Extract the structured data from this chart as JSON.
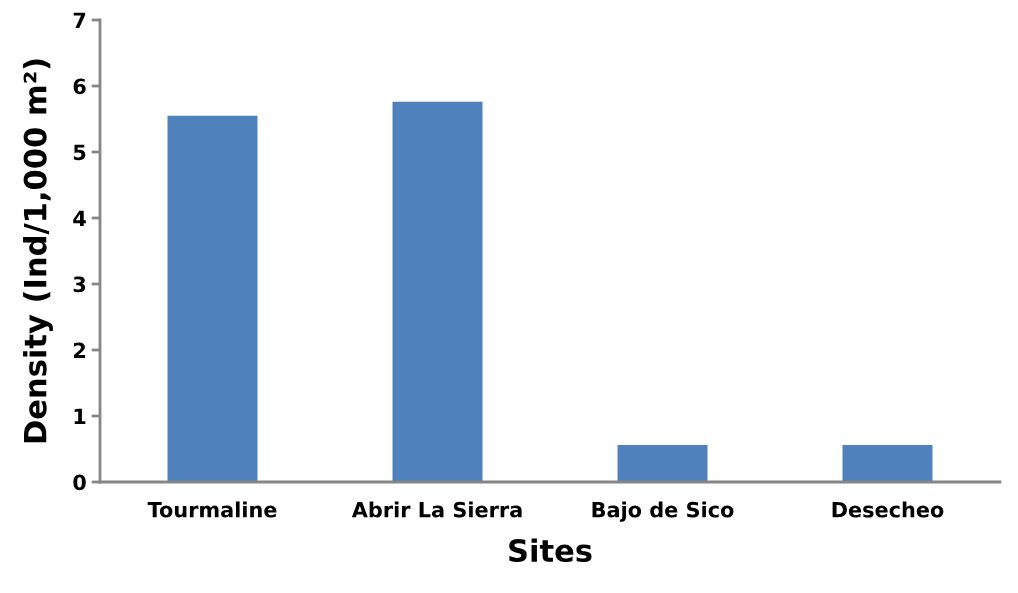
{
  "chart_data": {
    "type": "bar",
    "xlabel": "Sites",
    "ylabel": "Density (Ind/1,000 m²)",
    "categories": [
      "Tourmaline",
      "Abrir La Sierra",
      "Bajo de Sico",
      "Desecheo"
    ],
    "values": [
      5.55,
      5.76,
      0.56,
      0.56
    ],
    "color": "#4f81bd",
    "ylim": [
      0,
      7
    ],
    "yticks": [
      0,
      1,
      2,
      3,
      4,
      5,
      6,
      7
    ],
    "grid": false
  }
}
